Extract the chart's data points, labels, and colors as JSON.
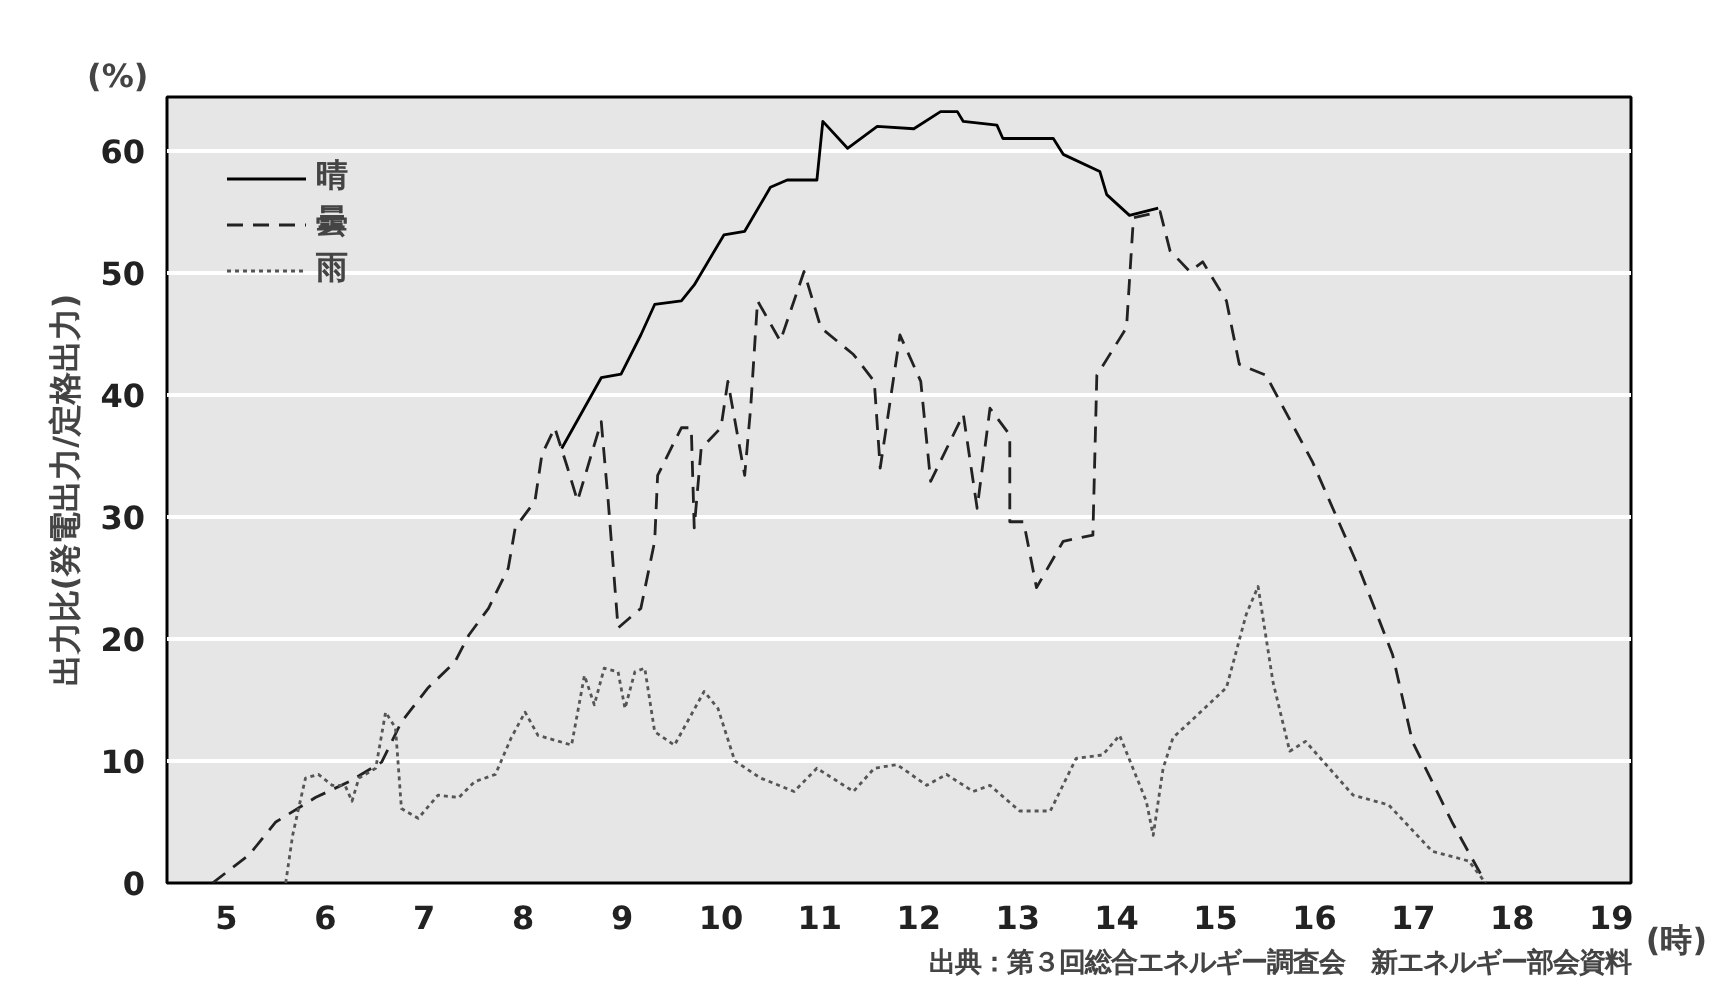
{
  "chart_data": {
    "type": "line",
    "ylabel": "出力比(発電出力/定格出力)",
    "annotations": [
      "(%)",
      "(時)",
      "出典：第３回総合エネルギー調査会　新エネルギー部会資料"
    ],
    "xlim": [
      4.4,
      19.2
    ],
    "xticks": [
      5,
      6,
      7,
      8,
      9,
      10,
      11,
      12,
      13,
      14,
      15,
      16,
      17,
      18,
      19
    ],
    "ylim": [
      0,
      64.4
    ],
    "yticks": [
      0,
      10,
      20,
      30,
      40,
      50,
      60
    ],
    "grid": "y",
    "legend": "top left",
    "series": [
      {
        "name": "晴",
        "color": "#000000",
        "line_style": "solid",
        "x": [
          8.39,
          8.79,
          8.99,
          9.19,
          9.33,
          9.6,
          9.73,
          10.03,
          10.24,
          10.5,
          10.67,
          10.97,
          11.03,
          11.28,
          11.58,
          11.95,
          12.22,
          12.39,
          12.45,
          12.79,
          12.85,
          13.36,
          13.46,
          13.83,
          13.9,
          14.13,
          14.42
        ],
        "values": [
          35.6,
          41.4,
          41.7,
          44.9,
          47.4,
          47.7,
          49.0,
          53.1,
          53.4,
          57.0,
          57.6,
          57.6,
          62.4,
          60.2,
          62.0,
          61.8,
          63.2,
          63.2,
          62.4,
          62.1,
          61.0,
          61.0,
          59.7,
          58.3,
          56.4,
          54.7,
          55.3
        ]
      },
      {
        "name": "曇",
        "color": "#222222",
        "line_style": "dashed",
        "x": [
          4.86,
          5.23,
          5.5,
          5.9,
          6.24,
          6.57,
          6.77,
          7.04,
          7.31,
          7.45,
          7.65,
          7.85,
          7.92,
          8.12,
          8.19,
          8.32,
          8.45,
          8.55,
          8.69,
          8.79,
          8.86,
          8.96,
          9.19,
          9.33,
          9.36,
          9.6,
          9.7,
          9.73,
          9.8,
          10.0,
          10.07,
          10.24,
          10.3,
          10.37,
          10.6,
          10.84,
          11.01,
          11.34,
          11.55,
          11.61,
          11.81,
          12.02,
          12.12,
          12.45,
          12.59,
          12.72,
          12.92,
          12.92,
          13.06,
          13.19,
          13.46,
          13.76,
          13.8,
          14.1,
          14.17,
          14.44,
          14.54,
          14.74,
          14.87,
          15.11,
          15.24,
          15.51,
          15.98,
          16.45,
          16.79,
          16.99,
          17.39,
          17.73
        ],
        "values": [
          0,
          2.3,
          5.0,
          7.0,
          8.3,
          9.9,
          13.2,
          16.0,
          18.1,
          20.3,
          22.5,
          25.8,
          29.1,
          31.3,
          35.1,
          37.3,
          34.0,
          31.3,
          35.1,
          37.8,
          31.3,
          20.9,
          22.5,
          28.0,
          33.4,
          37.3,
          37.3,
          29.1,
          35.6,
          37.3,
          41.1,
          33.4,
          38.9,
          47.7,
          44.4,
          50.1,
          45.5,
          43.3,
          41.1,
          34.0,
          44.9,
          41.1,
          32.9,
          38.4,
          30.7,
          38.9,
          36.7,
          29.6,
          29.6,
          24.2,
          28.0,
          28.5,
          41.6,
          45.5,
          54.5,
          55.0,
          51.8,
          50.1,
          50.9,
          47.7,
          42.5,
          41.6,
          34.5,
          25.8,
          18.7,
          11.6,
          5.0,
          0
        ]
      },
      {
        "name": "雨",
        "color": "#555555",
        "line_style": "dotted",
        "x": [
          5.6,
          5.67,
          5.73,
          5.8,
          5.93,
          6.07,
          6.2,
          6.27,
          6.34,
          6.51,
          6.61,
          6.71,
          6.77,
          6.94,
          7.14,
          7.35,
          7.51,
          7.72,
          7.88,
          8.02,
          8.15,
          8.49,
          8.62,
          8.72,
          8.82,
          8.96,
          9.03,
          9.13,
          9.23,
          9.33,
          9.53,
          9.83,
          9.97,
          10.14,
          10.4,
          10.74,
          10.97,
          11.34,
          11.55,
          11.78,
          12.08,
          12.28,
          12.55,
          12.72,
          13.02,
          13.33,
          13.59,
          13.86,
          14.03,
          14.3,
          14.37,
          14.47,
          14.57,
          15.11,
          15.31,
          15.43,
          15.58,
          15.75,
          15.91,
          16.39,
          16.75,
          17.19,
          17.56,
          17.73
        ],
        "values": [
          0,
          3.9,
          6.1,
          8.6,
          8.9,
          8.0,
          8.0,
          6.7,
          8.6,
          9.4,
          14.0,
          12.7,
          6.1,
          5.3,
          7.2,
          7.0,
          8.3,
          8.9,
          11.9,
          14.0,
          12.1,
          11.3,
          17.0,
          14.6,
          17.6,
          17.3,
          14.3,
          17.3,
          17.6,
          12.4,
          11.3,
          15.7,
          14.3,
          10.0,
          8.6,
          7.5,
          9.4,
          7.5,
          9.4,
          9.7,
          8.0,
          8.9,
          7.5,
          8.0,
          5.9,
          5.9,
          10.2,
          10.5,
          12.1,
          6.7,
          3.9,
          9.4,
          11.9,
          16.0,
          22.0,
          24.3,
          16.5,
          10.8,
          11.6,
          7.2,
          6.4,
          2.6,
          1.8,
          0
        ]
      }
    ]
  }
}
